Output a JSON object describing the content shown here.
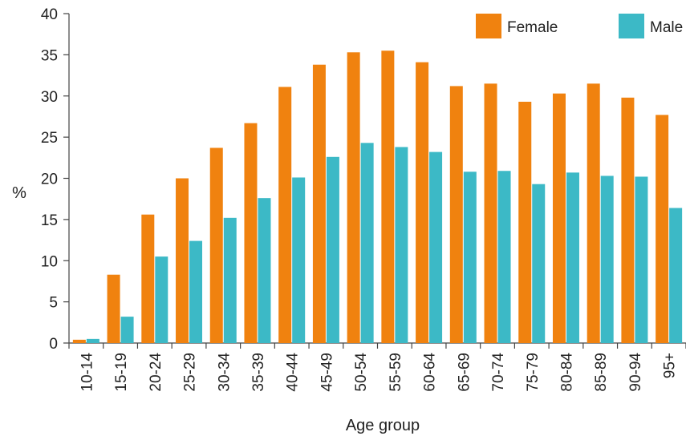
{
  "chart_data": {
    "type": "bar",
    "title": "",
    "xlabel": "Age group",
    "ylabel": "%",
    "ylim": [
      0,
      40
    ],
    "yticks": [
      0,
      5,
      10,
      15,
      20,
      25,
      30,
      35,
      40
    ],
    "legend_position": "top-right",
    "grid": false,
    "categories": [
      "10-14",
      "15-19",
      "20-24",
      "25-29",
      "30-34",
      "35-39",
      "40-44",
      "45-49",
      "50-54",
      "55-59",
      "60-64",
      "65-69",
      "70-74",
      "75-79",
      "80-84",
      "85-89",
      "90-94",
      "95+"
    ],
    "series": [
      {
        "name": "Female",
        "color": "#f0820f",
        "values": [
          0.4,
          8.3,
          15.6,
          20.0,
          23.7,
          26.7,
          31.1,
          33.8,
          35.3,
          35.5,
          34.1,
          31.2,
          31.5,
          29.3,
          30.3,
          31.5,
          29.8,
          27.7
        ]
      },
      {
        "name": "Male",
        "color": "#3cb9c6",
        "values": [
          0.5,
          3.2,
          10.5,
          12.4,
          15.2,
          17.6,
          20.1,
          22.6,
          24.3,
          23.8,
          23.2,
          20.8,
          20.9,
          19.3,
          20.7,
          20.3,
          20.2,
          16.4
        ]
      }
    ]
  }
}
